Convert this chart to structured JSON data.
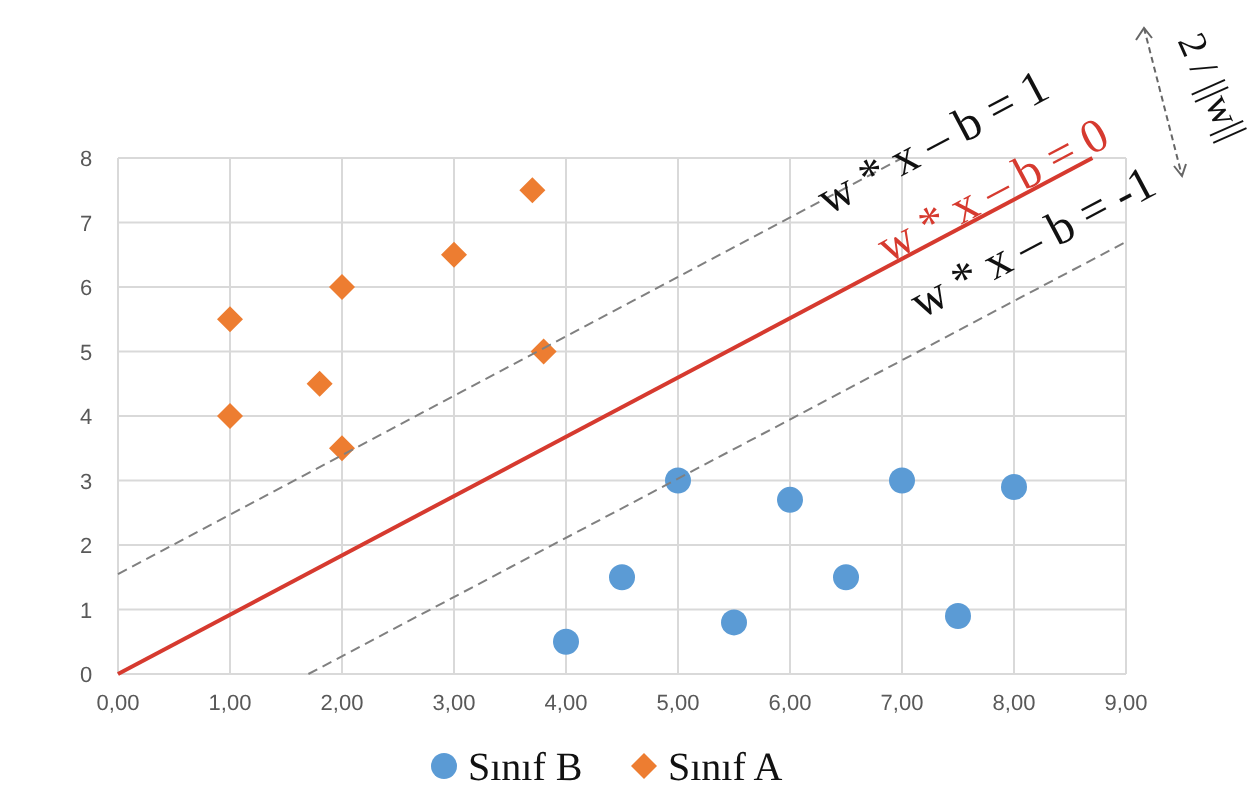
{
  "chart_data": {
    "type": "scatter",
    "xlim": [
      0,
      9
    ],
    "ylim": [
      0,
      8
    ],
    "xticks": [
      {
        "value": 0,
        "label": "0,00"
      },
      {
        "value": 1,
        "label": "1,00"
      },
      {
        "value": 2,
        "label": "2,00"
      },
      {
        "value": 3,
        "label": "3,00"
      },
      {
        "value": 4,
        "label": "4,00"
      },
      {
        "value": 5,
        "label": "5,00"
      },
      {
        "value": 6,
        "label": "6,00"
      },
      {
        "value": 7,
        "label": "7,00"
      },
      {
        "value": 8,
        "label": "8,00"
      },
      {
        "value": 9,
        "label": "9,00"
      }
    ],
    "yticks": [
      0,
      1,
      2,
      3,
      4,
      5,
      6,
      7,
      8
    ],
    "grid": true,
    "legend": "bottom",
    "series": [
      {
        "name": "Sınıf B",
        "color": "#5b9bd5",
        "marker": "circle",
        "x": [
          4,
          4.5,
          5,
          5.5,
          6,
          6.5,
          7,
          7.5,
          8
        ],
        "values": [
          0.5,
          1.5,
          3,
          0.8,
          2.7,
          1.5,
          3,
          0.9,
          2.9
        ]
      },
      {
        "name": "Sınıf A",
        "color": "#ed7d31",
        "marker": "diamond",
        "x": [
          1,
          1,
          1.8,
          2,
          2,
          3,
          3.7,
          3.8
        ],
        "values": [
          5.5,
          4,
          4.5,
          6,
          3.5,
          6.5,
          7.5,
          5
        ]
      },
      {
        "type": "line",
        "color": "#808080",
        "line_style": "dashed",
        "marker": "none",
        "x": [
          0,
          7
        ],
        "values": [
          1.55,
          8
        ]
      },
      {
        "type": "line",
        "color": "#d63a2f",
        "line_style": "solid",
        "marker": "none",
        "x": [
          0,
          8.7
        ],
        "values": [
          0,
          8
        ]
      },
      {
        "type": "line",
        "color": "#808080",
        "line_style": "dashed",
        "marker": "none",
        "x": [
          1.7,
          9
        ],
        "values": [
          0,
          6.7
        ]
      }
    ],
    "annotations": [
      "w * x – b = 1",
      "w * x – b = 0",
      "w * x – b = -1",
      "2 / ||w||"
    ]
  }
}
